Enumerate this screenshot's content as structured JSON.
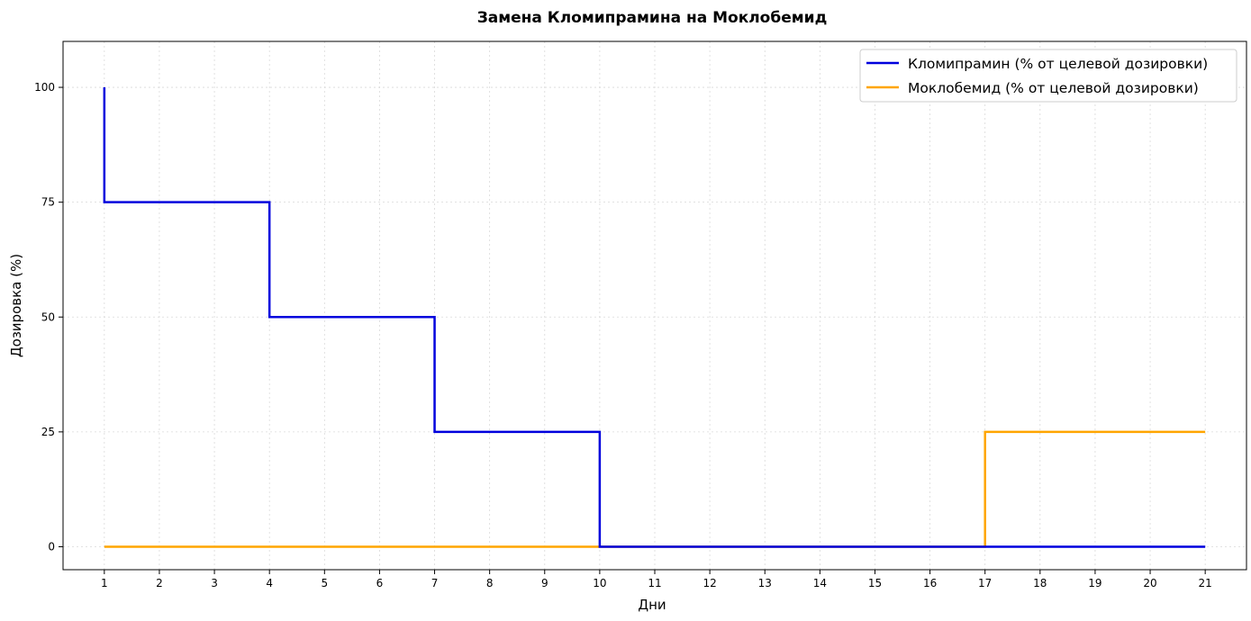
{
  "chart_data": {
    "type": "line",
    "step": true,
    "title": "Замена Кломипрамина на Моклобемид",
    "xlabel": "Дни",
    "ylabel": "Дозировка (%)",
    "xlim": [
      0.25,
      21.75
    ],
    "ylim": [
      -5,
      110
    ],
    "xticks": [
      1,
      2,
      3,
      4,
      5,
      6,
      7,
      8,
      9,
      10,
      11,
      12,
      13,
      14,
      15,
      16,
      17,
      18,
      19,
      20,
      21
    ],
    "yticks": [
      0,
      25,
      50,
      75,
      100
    ],
    "grid": true,
    "legend_position": "top-right",
    "series": [
      {
        "name": "Кломипрамин (% от целевой дозировки)",
        "color": "#0000dd",
        "points": [
          [
            1,
            100
          ],
          [
            1,
            75
          ],
          [
            4,
            75
          ],
          [
            4,
            50
          ],
          [
            7,
            50
          ],
          [
            7,
            25
          ],
          [
            10,
            25
          ],
          [
            10,
            0
          ],
          [
            21,
            0
          ]
        ]
      },
      {
        "name": "Моклобемид (% от целевой дозировки)",
        "color": "#ffa500",
        "points": [
          [
            1,
            0
          ],
          [
            17,
            0
          ],
          [
            17,
            25
          ],
          [
            21,
            25
          ]
        ]
      }
    ]
  }
}
